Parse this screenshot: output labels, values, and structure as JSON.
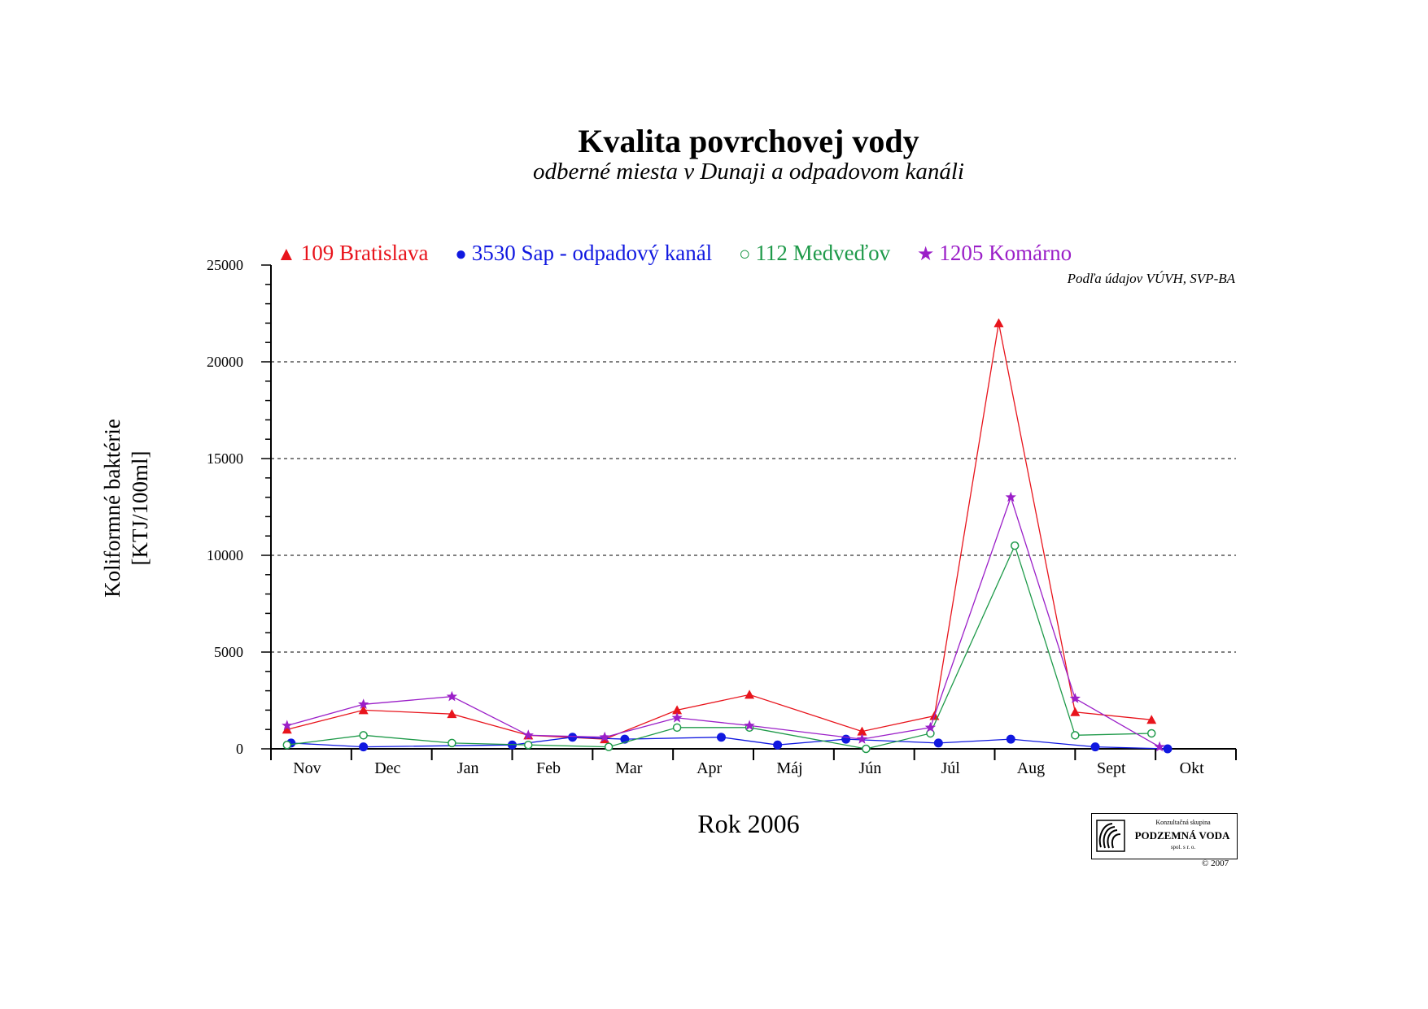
{
  "title": "Kvalita povrchovej vody",
  "subtitle": "odberné miesta v Dunaji a odpadovom kanáli",
  "source_note": "Podľa údajov VÚVH, SVP-BA",
  "logo": {
    "small_text": "Konzultačná skupina",
    "main_text": "PODZEMNÁ VODA",
    "sub_text": "spol. s r. o.",
    "copyright": "© 2007"
  },
  "chart_data": {
    "type": "line",
    "title": "Kvalita povrchovej vody",
    "subtitle": "odberné miesta v Dunaji a odpadovom kanáli",
    "xlabel": "Rok 2006",
    "ylabel_line1": "Koliformné baktérie",
    "ylabel_line2": "[KTJ/100ml]",
    "ylim": [
      0,
      25000
    ],
    "yticks": [
      0,
      5000,
      10000,
      15000,
      20000,
      25000
    ],
    "ytick_labels": [
      "0",
      "5000",
      "10000",
      "15000",
      "20000",
      "25000"
    ],
    "xlim": [
      0,
      12
    ],
    "months": [
      "Nov",
      "Dec",
      "Jan",
      "Feb",
      "Mar",
      "Apr",
      "Máj",
      "Jún",
      "Júl",
      "Aug",
      "Sept",
      "Okt"
    ],
    "grid": "horizontal dashed",
    "legend_position": "top",
    "series": [
      {
        "name": "109 Bratislava",
        "color": "#e8141c",
        "marker": "triangle",
        "x": [
          0.2,
          1.15,
          2.25,
          3.2,
          4.15,
          5.05,
          5.95,
          7.35,
          8.25,
          9.05,
          10.0,
          10.95
        ],
        "y": [
          1000,
          2000,
          1800,
          700,
          500,
          2000,
          2800,
          900,
          1700,
          22000,
          1900,
          1500
        ]
      },
      {
        "name": "3530 Sap - odpadový kanál",
        "color": "#1018e0",
        "marker": "filled-circle",
        "x": [
          0.25,
          1.15,
          3.0,
          3.75,
          4.4,
          5.6,
          6.3,
          7.15,
          8.3,
          9.2,
          10.25,
          11.15
        ],
        "y": [
          300,
          100,
          200,
          600,
          500,
          600,
          200,
          500,
          300,
          500,
          100,
          0
        ]
      },
      {
        "name": "112 Medveďov",
        "color": "#1f9a4a",
        "marker": "open-circle",
        "x": [
          0.2,
          1.15,
          2.25,
          3.2,
          4.2,
          5.05,
          5.95,
          7.4,
          8.2,
          9.25,
          10.0,
          10.95
        ],
        "y": [
          200,
          700,
          300,
          200,
          100,
          1100,
          1100,
          0,
          800,
          10500,
          700,
          800
        ]
      },
      {
        "name": "1205 Komárno",
        "color": "#9b1fc8",
        "marker": "star",
        "x": [
          0.2,
          1.15,
          2.25,
          3.2,
          4.15,
          5.05,
          5.95,
          7.35,
          8.2,
          9.2,
          10.0,
          11.05
        ],
        "y": [
          1200,
          2300,
          2700,
          700,
          600,
          1600,
          1200,
          500,
          1100,
          13000,
          2600,
          100
        ]
      }
    ]
  }
}
